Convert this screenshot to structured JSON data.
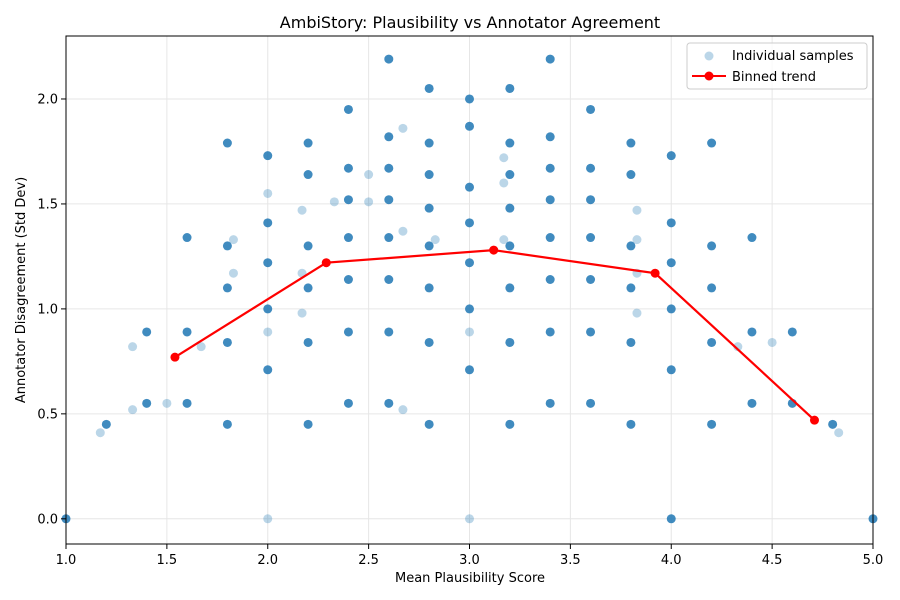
{
  "chart_data": {
    "type": "scatter",
    "title": "AmbiStory: Plausibility vs Annotator Agreement",
    "xlabel": "Mean Plausibility Score",
    "ylabel": "Annotator Disagreement (Std Dev)",
    "xlim": [
      1.0,
      5.0
    ],
    "ylim": [
      -0.12,
      2.3
    ],
    "xticks": [
      "1.0",
      "1.5",
      "2.0",
      "2.5",
      "3.0",
      "3.5",
      "4.0",
      "4.5",
      "5.0"
    ],
    "yticks": [
      "0.0",
      "0.5",
      "1.0",
      "1.5",
      "2.0"
    ],
    "grid": true,
    "legend_position": "top-right",
    "colors": {
      "scatter_fill": "#1f77b4",
      "trend_line": "#ff0000",
      "light_opacity": 0.3,
      "dense_opacity": 0.85
    },
    "series": [
      {
        "name": "Individual samples",
        "kind": "scatter",
        "points_dense": [
          [
            1.0,
            0.0
          ],
          [
            1.2,
            0.45
          ],
          [
            1.4,
            0.55
          ],
          [
            1.4,
            0.89
          ],
          [
            1.6,
            0.55
          ],
          [
            1.6,
            0.89
          ],
          [
            1.6,
            1.34
          ],
          [
            1.8,
            0.45
          ],
          [
            1.8,
            0.84
          ],
          [
            1.8,
            1.1
          ],
          [
            1.8,
            1.3
          ],
          [
            1.8,
            1.79
          ],
          [
            2.0,
            0.71
          ],
          [
            2.0,
            1.0
          ],
          [
            2.0,
            1.22
          ],
          [
            2.0,
            1.41
          ],
          [
            2.0,
            1.73
          ],
          [
            2.2,
            0.45
          ],
          [
            2.2,
            0.84
          ],
          [
            2.2,
            1.1
          ],
          [
            2.2,
            1.3
          ],
          [
            2.2,
            1.64
          ],
          [
            2.2,
            1.79
          ],
          [
            2.4,
            0.55
          ],
          [
            2.4,
            0.89
          ],
          [
            2.4,
            1.14
          ],
          [
            2.4,
            1.34
          ],
          [
            2.4,
            1.52
          ],
          [
            2.4,
            1.67
          ],
          [
            2.4,
            1.95
          ],
          [
            2.6,
            0.55
          ],
          [
            2.6,
            0.89
          ],
          [
            2.6,
            1.14
          ],
          [
            2.6,
            1.34
          ],
          [
            2.6,
            1.52
          ],
          [
            2.6,
            1.67
          ],
          [
            2.6,
            1.82
          ],
          [
            2.6,
            2.19
          ],
          [
            2.8,
            0.45
          ],
          [
            2.8,
            0.84
          ],
          [
            2.8,
            1.1
          ],
          [
            2.8,
            1.3
          ],
          [
            2.8,
            1.48
          ],
          [
            2.8,
            1.64
          ],
          [
            2.8,
            1.79
          ],
          [
            2.8,
            2.05
          ],
          [
            3.0,
            0.71
          ],
          [
            3.0,
            1.0
          ],
          [
            3.0,
            1.22
          ],
          [
            3.0,
            1.41
          ],
          [
            3.0,
            1.58
          ],
          [
            3.0,
            1.87
          ],
          [
            3.0,
            2.0
          ],
          [
            3.2,
            0.45
          ],
          [
            3.2,
            0.84
          ],
          [
            3.2,
            1.1
          ],
          [
            3.2,
            1.3
          ],
          [
            3.2,
            1.48
          ],
          [
            3.2,
            1.64
          ],
          [
            3.2,
            1.79
          ],
          [
            3.2,
            2.05
          ],
          [
            3.4,
            0.55
          ],
          [
            3.4,
            0.89
          ],
          [
            3.4,
            1.14
          ],
          [
            3.4,
            1.34
          ],
          [
            3.4,
            1.52
          ],
          [
            3.4,
            1.67
          ],
          [
            3.4,
            1.82
          ],
          [
            3.4,
            2.19
          ],
          [
            3.6,
            0.55
          ],
          [
            3.6,
            0.89
          ],
          [
            3.6,
            1.14
          ],
          [
            3.6,
            1.34
          ],
          [
            3.6,
            1.52
          ],
          [
            3.6,
            1.67
          ],
          [
            3.6,
            1.95
          ],
          [
            3.8,
            0.45
          ],
          [
            3.8,
            0.84
          ],
          [
            3.8,
            1.1
          ],
          [
            3.8,
            1.3
          ],
          [
            3.8,
            1.64
          ],
          [
            3.8,
            1.79
          ],
          [
            4.0,
            0.0
          ],
          [
            4.0,
            0.71
          ],
          [
            4.0,
            1.0
          ],
          [
            4.0,
            1.22
          ],
          [
            4.0,
            1.41
          ],
          [
            4.0,
            1.73
          ],
          [
            4.2,
            0.45
          ],
          [
            4.2,
            0.84
          ],
          [
            4.2,
            1.1
          ],
          [
            4.2,
            1.3
          ],
          [
            4.2,
            1.79
          ],
          [
            4.4,
            0.55
          ],
          [
            4.4,
            0.89
          ],
          [
            4.4,
            1.34
          ],
          [
            4.6,
            0.55
          ],
          [
            4.6,
            0.89
          ],
          [
            4.8,
            0.45
          ],
          [
            5.0,
            0.0
          ]
        ],
        "points_light": [
          [
            1.17,
            0.41
          ],
          [
            1.33,
            0.52
          ],
          [
            1.33,
            0.82
          ],
          [
            1.5,
            0.55
          ],
          [
            1.67,
            0.82
          ],
          [
            1.83,
            1.17
          ],
          [
            1.83,
            1.33
          ],
          [
            2.0,
            0.0
          ],
          [
            2.0,
            0.89
          ],
          [
            2.0,
            1.55
          ],
          [
            2.17,
            0.98
          ],
          [
            2.17,
            1.17
          ],
          [
            2.17,
            1.47
          ],
          [
            2.33,
            1.51
          ],
          [
            2.5,
            1.51
          ],
          [
            2.5,
            1.64
          ],
          [
            2.67,
            0.52
          ],
          [
            2.67,
            1.37
          ],
          [
            2.67,
            1.86
          ],
          [
            2.83,
            1.33
          ],
          [
            3.0,
            0.0
          ],
          [
            3.0,
            0.89
          ],
          [
            3.17,
            1.33
          ],
          [
            3.17,
            1.6
          ],
          [
            3.17,
            1.72
          ],
          [
            3.83,
            0.98
          ],
          [
            3.83,
            1.17
          ],
          [
            3.83,
            1.33
          ],
          [
            3.83,
            1.47
          ],
          [
            4.33,
            0.82
          ],
          [
            4.5,
            0.84
          ],
          [
            4.83,
            0.41
          ]
        ]
      },
      {
        "name": "Binned trend",
        "kind": "line",
        "x": [
          1.54,
          2.29,
          3.12,
          3.92,
          4.71
        ],
        "y": [
          0.77,
          1.22,
          1.28,
          1.17,
          0.47
        ]
      }
    ]
  }
}
